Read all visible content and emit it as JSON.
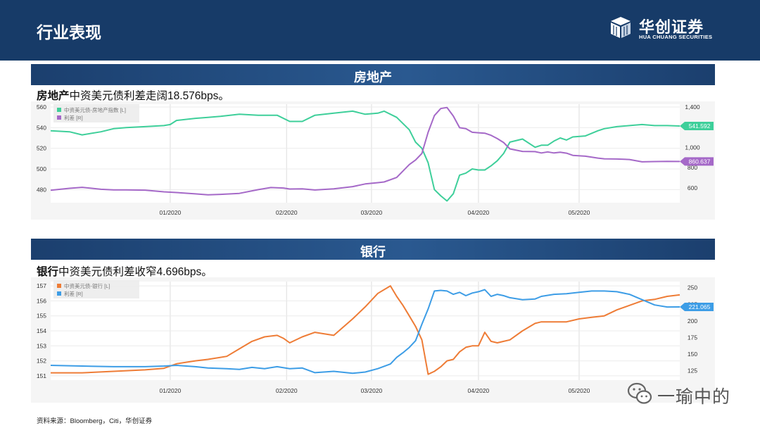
{
  "header": {
    "title": "行业表现",
    "logo_cn": "华创证券",
    "logo_en": "HUA CHUANG SECURITIES"
  },
  "sections": [
    {
      "band_title": "房地产",
      "subtitle_bold": "房地产",
      "subtitle_rest": "中资美元债利差走阔18.576bps。"
    },
    {
      "band_title": "银行",
      "subtitle_bold": "银行",
      "subtitle_rest": "中资美元债利差收窄4.696bps。"
    }
  ],
  "source": "资料来源：Bloomberg，Citi，华创证券",
  "watermark": "一瑜中的",
  "colors": {
    "navy": "#173b68",
    "green": "#3ecf9a",
    "purple": "#a569c8",
    "orange": "#ee7c36",
    "blue": "#3d9de6"
  },
  "chart_data": [
    {
      "type": "line",
      "title": "房地产",
      "x_ticks": [
        "01/2020",
        "02/2020",
        "03/2020",
        "04/2020",
        "05/2020"
      ],
      "x_range": [
        0,
        100
      ],
      "x_tick_positions": [
        19,
        37.5,
        51,
        68,
        84
      ],
      "y_left": {
        "ticks": [
          480,
          500,
          520,
          540,
          560
        ],
        "range": [
          470,
          560
        ]
      },
      "y_right": {
        "ticks": [
          "600",
          "800",
          "1,000",
          "1,200",
          "1,400"
        ],
        "range": [
          480,
          1400
        ]
      },
      "series": [
        {
          "name": "中资美元债-房地产指数 [L]",
          "axis": "left",
          "color": "#3ecf9a",
          "last_label": "541.592",
          "x": [
            0,
            3,
            5,
            8,
            10,
            12,
            15,
            18,
            19,
            20,
            23,
            25,
            27,
            30,
            33,
            36,
            38,
            40,
            42,
            45,
            48,
            50,
            52,
            53,
            55,
            57,
            58,
            59,
            60,
            61,
            62,
            63,
            64,
            65,
            66,
            67,
            68,
            69,
            70,
            71,
            72,
            73,
            75,
            77,
            78,
            79,
            80,
            81,
            82,
            83,
            85,
            87,
            88,
            90,
            92,
            94,
            96,
            98,
            100
          ],
          "y": [
            537,
            536,
            533,
            536,
            539,
            540,
            541,
            542,
            543,
            547,
            549,
            550,
            551,
            553,
            552,
            552,
            546,
            546,
            552,
            554,
            556,
            553,
            554,
            556,
            550,
            538,
            526,
            520,
            506,
            480,
            474,
            469,
            476,
            494,
            496,
            500,
            499,
            499,
            503,
            508,
            515,
            526,
            529,
            521,
            523,
            523,
            527,
            530,
            528,
            531,
            532,
            537,
            539,
            541,
            542,
            543,
            542,
            542,
            541.592
          ]
        },
        {
          "name": "利差 [R]",
          "axis": "right",
          "color": "#a569c8",
          "last_label": "860.637",
          "x": [
            0,
            3,
            5,
            8,
            10,
            12,
            15,
            18,
            20,
            23,
            25,
            27,
            30,
            33,
            35,
            37,
            38,
            40,
            42,
            45,
            48,
            50,
            52,
            53,
            55,
            57,
            58,
            59,
            60,
            61,
            62,
            63,
            64,
            65,
            66,
            67,
            68,
            69,
            70,
            71,
            72,
            73,
            75,
            77,
            78,
            79,
            80,
            81,
            82,
            83,
            85,
            87,
            88,
            90,
            92,
            94,
            96,
            98,
            100
          ],
          "y": [
            576,
            595,
            605,
            585,
            580,
            580,
            577,
            560,
            553,
            540,
            530,
            535,
            545,
            582,
            603,
            598,
            588,
            590,
            578,
            590,
            612,
            638,
            651,
            658,
            702,
            830,
            875,
            940,
            1150,
            1315,
            1385,
            1395,
            1310,
            1195,
            1185,
            1150,
            1145,
            1141,
            1120,
            1087,
            1048,
            985,
            960,
            958,
            945,
            955,
            945,
            952,
            943,
            921,
            913,
            894,
            887,
            885,
            880,
            857,
            860,
            862,
            860.637
          ]
        }
      ]
    },
    {
      "type": "line",
      "title": "银行",
      "x_ticks": [
        "01/2020",
        "02/2020",
        "03/2020",
        "04/2020",
        "05/2020"
      ],
      "x_range": [
        0,
        100
      ],
      "x_tick_positions": [
        19,
        37.5,
        51,
        68,
        84
      ],
      "y_left": {
        "ticks": [
          151,
          152,
          153,
          154,
          155,
          156,
          157
        ],
        "range": [
          150.9,
          157.1
        ]
      },
      "y_right": {
        "ticks": [
          "125",
          "150",
          "175",
          "200",
          "225",
          "250"
        ],
        "range": [
          115,
          255
        ]
      },
      "series": [
        {
          "name": "中资美元债-银行 [L]",
          "axis": "left",
          "color": "#ee7c36",
          "last_label": "",
          "x": [
            0,
            5,
            10,
            15,
            18,
            20,
            23,
            25,
            28,
            30,
            32,
            34,
            36,
            37,
            38,
            40,
            42,
            45,
            48,
            50,
            52,
            54,
            55,
            56,
            57,
            58,
            59,
            60,
            61,
            62,
            63,
            64,
            65,
            66,
            67,
            68,
            69,
            70,
            71,
            72,
            73,
            75,
            77,
            78,
            80,
            82,
            84,
            86,
            88,
            90,
            92,
            94,
            96,
            98,
            100
          ],
          "y": [
            151.2,
            151.2,
            151.3,
            151.4,
            151.5,
            151.8,
            152,
            152.1,
            152.3,
            152.8,
            153.3,
            153.6,
            153.7,
            153.5,
            153.2,
            153.6,
            153.9,
            153.7,
            154.8,
            155.6,
            156.5,
            157,
            156.3,
            155.7,
            155,
            154.3,
            153.4,
            151.1,
            151.3,
            151.6,
            152,
            152.1,
            152.6,
            152.9,
            153,
            153,
            153.9,
            153.3,
            153.2,
            153.3,
            153.4,
            154,
            154.5,
            154.6,
            154.6,
            154.6,
            154.8,
            154.9,
            155,
            155.4,
            155.7,
            156,
            156.1,
            156.3,
            156.4
          ]
        },
        {
          "name": "利差 [R]",
          "axis": "right",
          "color": "#3d9de6",
          "last_label": "221.065",
          "x": [
            0,
            5,
            10,
            15,
            18,
            20,
            23,
            25,
            28,
            30,
            32,
            34,
            36,
            38,
            40,
            42,
            45,
            48,
            50,
            52,
            54,
            55,
            56,
            57,
            58,
            59,
            60,
            61,
            62,
            63,
            64,
            65,
            66,
            67,
            68,
            69,
            70,
            71,
            72,
            73,
            75,
            77,
            78,
            80,
            82,
            84,
            86,
            88,
            90,
            92,
            94,
            96,
            98,
            100
          ],
          "y": [
            133,
            132,
            131,
            131,
            132,
            133,
            131,
            129,
            128,
            127,
            130,
            128,
            131,
            128,
            129,
            122,
            124,
            121,
            123,
            128,
            135,
            145,
            152,
            160,
            170,
            195,
            218,
            245,
            246,
            245,
            240,
            243,
            238,
            242,
            244,
            247,
            237,
            240,
            238,
            235,
            232,
            233,
            237,
            240,
            241,
            243,
            245,
            245,
            244,
            240,
            232,
            224,
            221,
            221.065
          ]
        }
      ]
    }
  ]
}
